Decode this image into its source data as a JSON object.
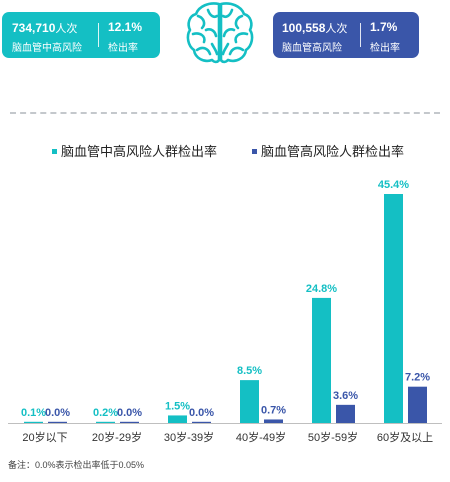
{
  "badges": {
    "left": {
      "count": "734,710",
      "unit": "人次",
      "count_label": "脑血管中高风险",
      "rate": "12.1%",
      "rate_label": "检出率"
    },
    "right": {
      "count": "100,558",
      "unit": "人次",
      "count_label": "脑血管高风险",
      "rate": "1.7%",
      "rate_label": "检出率"
    }
  },
  "icons": {
    "center": "brain-icon"
  },
  "colors": {
    "teal": "#14bfc4",
    "navy": "#3a56a9",
    "badge_left_bg": "#14bfc4",
    "badge_right_bg": "#3a56a9"
  },
  "chart_data": {
    "type": "bar",
    "categories": [
      "20岁以下",
      "20岁-29岁",
      "30岁-39岁",
      "40岁-49岁",
      "50岁-59岁",
      "60岁及以上"
    ],
    "series": [
      {
        "name": "脑血管中高风险人群检出率",
        "color": "#14bfc4",
        "values": [
          0.1,
          0.2,
          1.5,
          8.5,
          24.8,
          45.4
        ],
        "labels": [
          "0.1%",
          "0.2%",
          "1.5%",
          "8.5%",
          "24.8%",
          "45.4%"
        ]
      },
      {
        "name": "脑血管高风险人群检出率",
        "color": "#3a56a9",
        "values": [
          0.0,
          0.0,
          0.0,
          0.7,
          3.6,
          7.2
        ],
        "labels": [
          "0.0%",
          "0.0%",
          "0.0%",
          "0.7%",
          "3.6%",
          "7.2%"
        ]
      }
    ],
    "ylim": [
      0,
      45.4
    ],
    "grid": false,
    "legend": "top"
  },
  "footnote": "备注：0.0%表示检出率低于0.05%"
}
